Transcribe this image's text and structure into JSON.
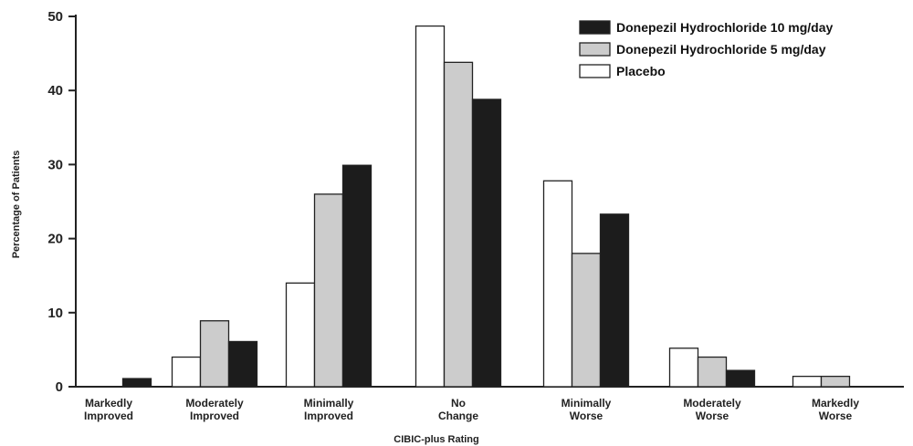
{
  "chart_data": {
    "type": "bar",
    "title": "",
    "xlabel": "CIBIC-plus Rating",
    "ylabel": "Percentage of Patients",
    "ylim": [
      0,
      50
    ],
    "yticks": [
      0,
      10,
      20,
      30,
      40,
      50
    ],
    "legend_position": "top-right",
    "grid": false,
    "categories": [
      [
        "Markedly",
        "Improved"
      ],
      [
        "Moderately",
        "Improved"
      ],
      [
        "Minimally",
        "Improved"
      ],
      [
        "No",
        "Change"
      ],
      [
        "Minimally",
        "Worse"
      ],
      [
        "Moderately",
        "Worse"
      ],
      [
        "Markedly",
        "Worse"
      ]
    ],
    "series": [
      {
        "name": "Placebo",
        "color": "#ffffff",
        "values": [
          0,
          4,
          14,
          48.7,
          27.8,
          5.2,
          1.4
        ]
      },
      {
        "name": "Donepezil Hydrochloride 5 mg/day",
        "color": "#cccccc",
        "values": [
          0,
          8.9,
          26,
          43.8,
          18,
          4,
          1.4
        ]
      },
      {
        "name": "Donepezil Hydrochloride 10 mg/day",
        "color": "#1c1c1c",
        "values": [
          1.1,
          6.1,
          29.9,
          38.8,
          23.3,
          2.2,
          0
        ]
      }
    ],
    "legend_order": [
      2,
      1,
      0
    ]
  }
}
